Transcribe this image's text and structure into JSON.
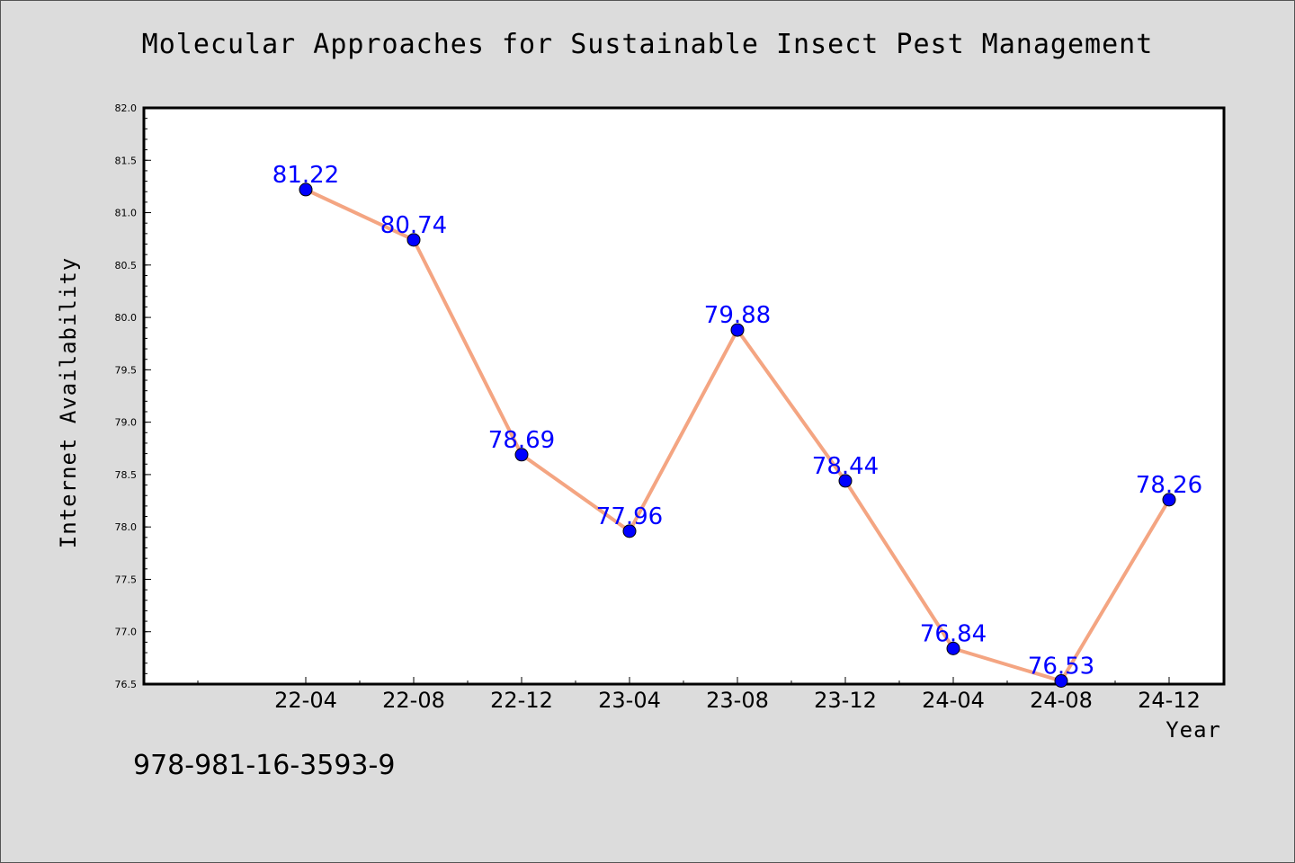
{
  "chart_data": {
    "type": "line",
    "title": "Molecular Approaches for Sustainable Insect Pest Management",
    "xlabel": "Year",
    "ylabel": "Internet Availability",
    "categories": [
      "22-04",
      "22-08",
      "22-12",
      "23-04",
      "23-08",
      "23-12",
      "24-04",
      "24-08",
      "24-12"
    ],
    "series": [
      {
        "values": [
          81.22,
          80.74,
          78.69,
          77.96,
          79.88,
          78.44,
          76.84,
          76.53,
          78.26
        ],
        "labels": [
          "81.22",
          "80.74",
          "78.69",
          "77.96",
          "79.88",
          "78.44",
          "76.84",
          "76.53",
          "78.26"
        ],
        "line_color": "#f4a582",
        "marker_color": "#0000ff"
      }
    ],
    "ylim": [
      76.5,
      82.0
    ],
    "yticks": [
      "76.5",
      "77.0",
      "77.5",
      "78.0",
      "78.5",
      "79.0",
      "79.5",
      "80.0",
      "80.5",
      "81.0",
      "81.5",
      "82.0"
    ],
    "grid": false,
    "legend": "none"
  },
  "footer": {
    "isbn": "978-981-16-3593-9"
  }
}
